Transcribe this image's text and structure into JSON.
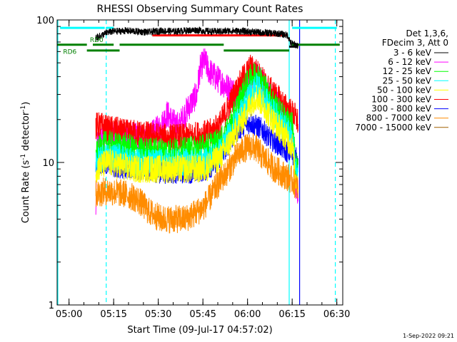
{
  "chart_data": {
    "type": "line",
    "title": "RHESSI Observing Summary Count Rates",
    "xlabel": "Start Time (09-Jul-17 04:57:02)",
    "ylabel_main": "Count Rate (s",
    "ylabel_sup": "-1",
    "ylabel_mid": " detector",
    "ylabel_tail": ")",
    "x_unit": "minutes after 04:57:02",
    "xlim": [
      -1,
      95
    ],
    "ylim": [
      1,
      100
    ],
    "yscale": "log",
    "x_ticks": [
      {
        "t": 3,
        "label": "05:00"
      },
      {
        "t": 18,
        "label": "05:15"
      },
      {
        "t": 33,
        "label": "05:30"
      },
      {
        "t": 48,
        "label": "05:45"
      },
      {
        "t": 63,
        "label": "06:00"
      },
      {
        "t": 78,
        "label": "06:15"
      },
      {
        "t": 93,
        "label": "06:30"
      }
    ],
    "y_ticks": [
      {
        "v": 1,
        "label": "1"
      },
      {
        "v": 10,
        "label": "10"
      },
      {
        "v": 100,
        "label": "100"
      }
    ],
    "legend": {
      "position": "top-right",
      "header1": "Det 1,3,6,",
      "header2": "FDecim 3, Att 0"
    },
    "series": [
      {
        "name": "3 - 6 keV",
        "color": "#000000",
        "points": [
          [
            12,
            75
          ],
          [
            14,
            78
          ],
          [
            16,
            82
          ],
          [
            18,
            83
          ],
          [
            22,
            84
          ],
          [
            26,
            83
          ],
          [
            30,
            82
          ],
          [
            34,
            84
          ],
          [
            38,
            83
          ],
          [
            42,
            84
          ],
          [
            46,
            85
          ],
          [
            50,
            83
          ],
          [
            54,
            83
          ],
          [
            58,
            84
          ],
          [
            62,
            83
          ],
          [
            66,
            82
          ],
          [
            70,
            81
          ],
          [
            74,
            80
          ],
          [
            76.5,
            78
          ],
          [
            77.5,
            69
          ],
          [
            79,
            67
          ],
          [
            80,
            66
          ]
        ]
      },
      {
        "name": "6 - 12 keV",
        "color": "#ff00ff",
        "points": [
          [
            12,
            4
          ],
          [
            12.5,
            14
          ],
          [
            14,
            15
          ],
          [
            16,
            16
          ],
          [
            18,
            15
          ],
          [
            22,
            16
          ],
          [
            26,
            15
          ],
          [
            30,
            15
          ],
          [
            34,
            18
          ],
          [
            36,
            22
          ],
          [
            38,
            19
          ],
          [
            40,
            18
          ],
          [
            42,
            22
          ],
          [
            44,
            26
          ],
          [
            46,
            30
          ],
          [
            47,
            45
          ],
          [
            48.5,
            52
          ],
          [
            50,
            44
          ],
          [
            52,
            40
          ],
          [
            54,
            37
          ],
          [
            56,
            34
          ],
          [
            58,
            32
          ],
          [
            60,
            30
          ],
          [
            62,
            32
          ],
          [
            64,
            38
          ],
          [
            66,
            40
          ],
          [
            68,
            36
          ],
          [
            70,
            32
          ],
          [
            72,
            28
          ],
          [
            74,
            24
          ],
          [
            76,
            20
          ],
          [
            77,
            18
          ],
          [
            78,
            16
          ],
          [
            79,
            7
          ],
          [
            80,
            6
          ]
        ]
      },
      {
        "name": "12 - 25 keV",
        "color": "#00ff00",
        "points": [
          [
            12,
            11
          ],
          [
            14,
            13
          ],
          [
            16,
            13.5
          ],
          [
            18,
            13
          ],
          [
            22,
            13
          ],
          [
            26,
            12
          ],
          [
            30,
            12
          ],
          [
            34,
            12
          ],
          [
            38,
            12
          ],
          [
            42,
            12
          ],
          [
            46,
            12.5
          ],
          [
            50,
            13
          ],
          [
            54,
            14
          ],
          [
            56,
            16
          ],
          [
            58,
            20
          ],
          [
            60,
            26
          ],
          [
            62,
            33
          ],
          [
            64,
            39
          ],
          [
            66,
            42
          ],
          [
            68,
            36
          ],
          [
            70,
            30
          ],
          [
            72,
            26
          ],
          [
            74,
            22
          ],
          [
            76,
            20
          ],
          [
            78,
            18
          ],
          [
            79,
            10
          ],
          [
            80,
            9
          ]
        ]
      },
      {
        "name": "25 - 50 keV",
        "color": "#00ffff",
        "points": [
          [
            12,
            10
          ],
          [
            16,
            11
          ],
          [
            20,
            11
          ],
          [
            24,
            10
          ],
          [
            28,
            10
          ],
          [
            32,
            10
          ],
          [
            36,
            10
          ],
          [
            40,
            10
          ],
          [
            44,
            10
          ],
          [
            48,
            10
          ],
          [
            50,
            10.5
          ],
          [
            54,
            12
          ],
          [
            58,
            17
          ],
          [
            62,
            24
          ],
          [
            64,
            30
          ],
          [
            66,
            34
          ],
          [
            68,
            30
          ],
          [
            70,
            25
          ],
          [
            72,
            22
          ],
          [
            74,
            19
          ],
          [
            76,
            17
          ],
          [
            78,
            15
          ],
          [
            79,
            9
          ],
          [
            80,
            8
          ]
        ]
      },
      {
        "name": "50 - 100 keV",
        "color": "#ffff00",
        "points": [
          [
            12,
            9
          ],
          [
            16,
            10
          ],
          [
            20,
            9.5
          ],
          [
            24,
            9
          ],
          [
            28,
            9
          ],
          [
            32,
            9
          ],
          [
            36,
            9
          ],
          [
            40,
            9
          ],
          [
            44,
            9
          ],
          [
            48,
            9
          ],
          [
            50,
            9.5
          ],
          [
            54,
            11
          ],
          [
            58,
            15
          ],
          [
            62,
            21
          ],
          [
            64,
            26
          ],
          [
            66,
            29
          ],
          [
            68,
            26
          ],
          [
            70,
            22
          ],
          [
            72,
            19
          ],
          [
            74,
            17
          ],
          [
            76,
            15
          ],
          [
            78,
            13
          ],
          [
            79,
            8
          ],
          [
            80,
            7
          ]
        ]
      },
      {
        "name": "100 - 300 keV",
        "color": "#ff0000",
        "points": [
          [
            12,
            18
          ],
          [
            14,
            18
          ],
          [
            16,
            17
          ],
          [
            18,
            17
          ],
          [
            22,
            16
          ],
          [
            26,
            16
          ],
          [
            30,
            15.5
          ],
          [
            34,
            15
          ],
          [
            38,
            15
          ],
          [
            42,
            15
          ],
          [
            46,
            15.5
          ],
          [
            50,
            16
          ],
          [
            52,
            17
          ],
          [
            54,
            19
          ],
          [
            56,
            23
          ],
          [
            58,
            28
          ],
          [
            60,
            34
          ],
          [
            62,
            40
          ],
          [
            64,
            46
          ],
          [
            66,
            43
          ],
          [
            68,
            38
          ],
          [
            70,
            33
          ],
          [
            72,
            30
          ],
          [
            74,
            27
          ],
          [
            76,
            24
          ],
          [
            78,
            22
          ],
          [
            79,
            21
          ],
          [
            80,
            19
          ]
        ]
      },
      {
        "name": "300 - 800 keV",
        "color": "#0000ff",
        "points": [
          [
            12,
            10
          ],
          [
            14,
            10
          ],
          [
            16,
            10
          ],
          [
            18,
            9.5
          ],
          [
            22,
            9
          ],
          [
            26,
            9
          ],
          [
            30,
            8.8
          ],
          [
            34,
            8.5
          ],
          [
            38,
            8.5
          ],
          [
            42,
            8.5
          ],
          [
            46,
            8.6
          ],
          [
            50,
            9
          ],
          [
            52,
            10
          ],
          [
            54,
            11
          ],
          [
            56,
            13
          ],
          [
            58,
            15
          ],
          [
            60,
            17
          ],
          [
            62,
            18.5
          ],
          [
            64,
            19
          ],
          [
            66,
            18
          ],
          [
            68,
            17
          ],
          [
            70,
            15
          ],
          [
            72,
            14
          ],
          [
            74,
            13
          ],
          [
            76,
            12
          ],
          [
            78,
            11.5
          ],
          [
            79,
            11
          ],
          [
            80,
            10
          ]
        ]
      },
      {
        "name": "800 - 7000 keV",
        "color": "#ff8c00",
        "points": [
          [
            12,
            6
          ],
          [
            14,
            6.2
          ],
          [
            16,
            6.3
          ],
          [
            18,
            6.2
          ],
          [
            22,
            6
          ],
          [
            26,
            5.5
          ],
          [
            30,
            4.5
          ],
          [
            34,
            4
          ],
          [
            38,
            4
          ],
          [
            42,
            4
          ],
          [
            46,
            4.5
          ],
          [
            48,
            4.8
          ],
          [
            50,
            5.5
          ],
          [
            52,
            6.5
          ],
          [
            54,
            7.5
          ],
          [
            56,
            8.5
          ],
          [
            58,
            10
          ],
          [
            60,
            11.5
          ],
          [
            62,
            12.5
          ],
          [
            64,
            13
          ],
          [
            66,
            12.5
          ],
          [
            68,
            11
          ],
          [
            70,
            10
          ],
          [
            72,
            9
          ],
          [
            74,
            8.5
          ],
          [
            76,
            8
          ],
          [
            78,
            7.5
          ],
          [
            79,
            7
          ],
          [
            80,
            6.5
          ]
        ]
      },
      {
        "name": "7000 - 15000 keV",
        "color": "#a06000",
        "points": []
      }
    ],
    "vertical_lines": [
      {
        "t": -1,
        "color": "#00ffff",
        "style": "solid"
      },
      {
        "t": 15.5,
        "color": "#00ffff",
        "style": "dashed"
      },
      {
        "t": 77,
        "color": "#00ffff",
        "style": "solid"
      },
      {
        "t": 80.5,
        "color": "#0000ff",
        "style": "solid"
      },
      {
        "t": 92.5,
        "color": "#00ffff",
        "style": "dashed"
      }
    ],
    "status_bars": [
      {
        "color": "#00ffff",
        "y": 88,
        "segments": [
          [
            0,
            15
          ],
          [
            15.5,
            18
          ],
          [
            78,
            93
          ]
        ]
      },
      {
        "color": "#ff0000",
        "y": 78,
        "segments": [
          [
            31,
            76
          ]
        ]
      },
      {
        "color": "#008000",
        "y": 67,
        "segments": [
          [
            -1,
            9
          ],
          [
            11,
            18
          ],
          [
            20,
            55
          ],
          [
            78,
            94
          ]
        ]
      },
      {
        "color": "#008000",
        "y": 61,
        "segments": [
          [
            9,
            20
          ],
          [
            55,
            77
          ]
        ]
      },
      {
        "color": "#000000",
        "y": 65,
        "segments": [
          [
            77,
            80
          ]
        ]
      }
    ],
    "status_labels": [
      {
        "text": "RD0",
        "t": 10,
        "y": 70,
        "color": "#008000"
      },
      {
        "text": "RD6",
        "t": 1,
        "y": 58,
        "color": "#008000"
      }
    ],
    "timestamp": "1-Sep-2022 09:21"
  }
}
